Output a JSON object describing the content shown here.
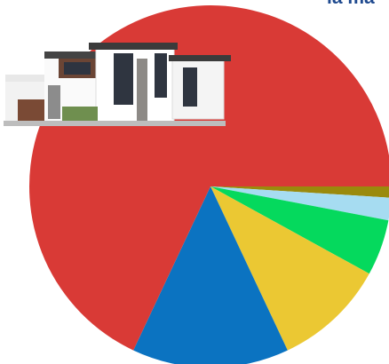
{
  "chart_data": {
    "type": "pie",
    "title": "la ma",
    "categories": [
      null,
      null,
      null,
      null,
      null,
      null
    ],
    "values": [
      1,
      2,
      5,
      10,
      14,
      68
    ],
    "colors": [
      "#9a8a0c",
      "#a6dcf1",
      "#05d95d",
      "#ebc833",
      "#0b73c1",
      "#d93a36"
    ]
  }
}
